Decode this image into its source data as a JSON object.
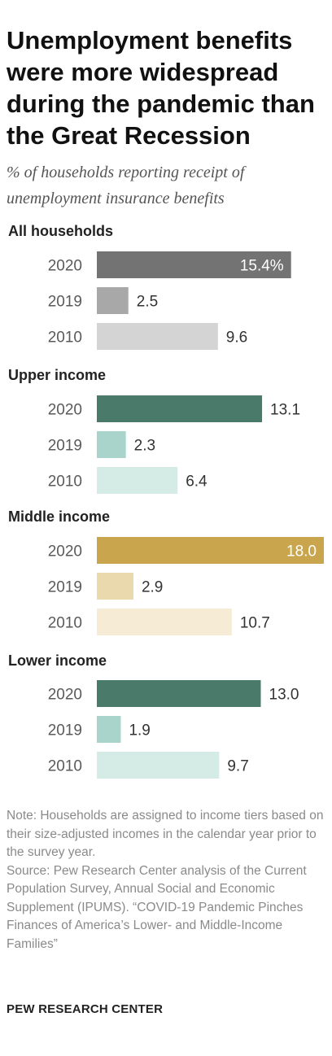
{
  "title": "Unemployment benefits were more widespread during the pandemic than the Great Recession",
  "subtitle": "% of households reporting receipt of unemployment insurance benefits",
  "note": "Note: Households are assigned to income tiers based on their size-adjusted incomes in the calendar year prior to the survey year.",
  "source": "Source: Pew Research Center analysis of the Current Population Survey, Annual Social and Economic Supplement (IPUMS). “COVID-19 Pandemic Pinches Finances of America’s Lower- and Middle-Income Families”",
  "organization": "PEW RESEARCH CENTER",
  "chart_data": {
    "type": "bar",
    "orientation": "horizontal",
    "title": "Unemployment benefits were more widespread during the pandemic than the Great Recession",
    "subtitle": "% of households reporting receipt of unemployment insurance benefits",
    "value_suffix_first": "%",
    "groups": [
      {
        "name": "All households",
        "colors": [
          "#737373",
          "#a8a8a8",
          "#d4d4d4"
        ],
        "bars": [
          {
            "year": "2020",
            "value": 15.4,
            "label": "15.4%"
          },
          {
            "year": "2019",
            "value": 2.5,
            "label": "2.5"
          },
          {
            "year": "2010",
            "value": 9.6,
            "label": "9.6"
          }
        ]
      },
      {
        "name": "Upper income",
        "colors": [
          "#4a7a6a",
          "#a9d4cb",
          "#d4ebe6"
        ],
        "bars": [
          {
            "year": "2020",
            "value": 13.1,
            "label": "13.1"
          },
          {
            "year": "2019",
            "value": 2.3,
            "label": "2.3"
          },
          {
            "year": "2010",
            "value": 6.4,
            "label": "6.4"
          }
        ]
      },
      {
        "name": "Middle income",
        "colors": [
          "#c9a64e",
          "#ead9ad",
          "#f6ecd6"
        ],
        "bars": [
          {
            "year": "2020",
            "value": 18.0,
            "label": "18.0"
          },
          {
            "year": "2019",
            "value": 2.9,
            "label": "2.9"
          },
          {
            "year": "2010",
            "value": 10.7,
            "label": "10.7"
          }
        ]
      },
      {
        "name": "Lower income",
        "colors": [
          "#4a7a6a",
          "#a9d4cb",
          "#d4ebe6"
        ],
        "bars": [
          {
            "year": "2020",
            "value": 13.0,
            "label": "13.0"
          },
          {
            "year": "2019",
            "value": 1.9,
            "label": "1.9"
          },
          {
            "year": "2010",
            "value": 9.7,
            "label": "9.7"
          }
        ]
      }
    ]
  }
}
